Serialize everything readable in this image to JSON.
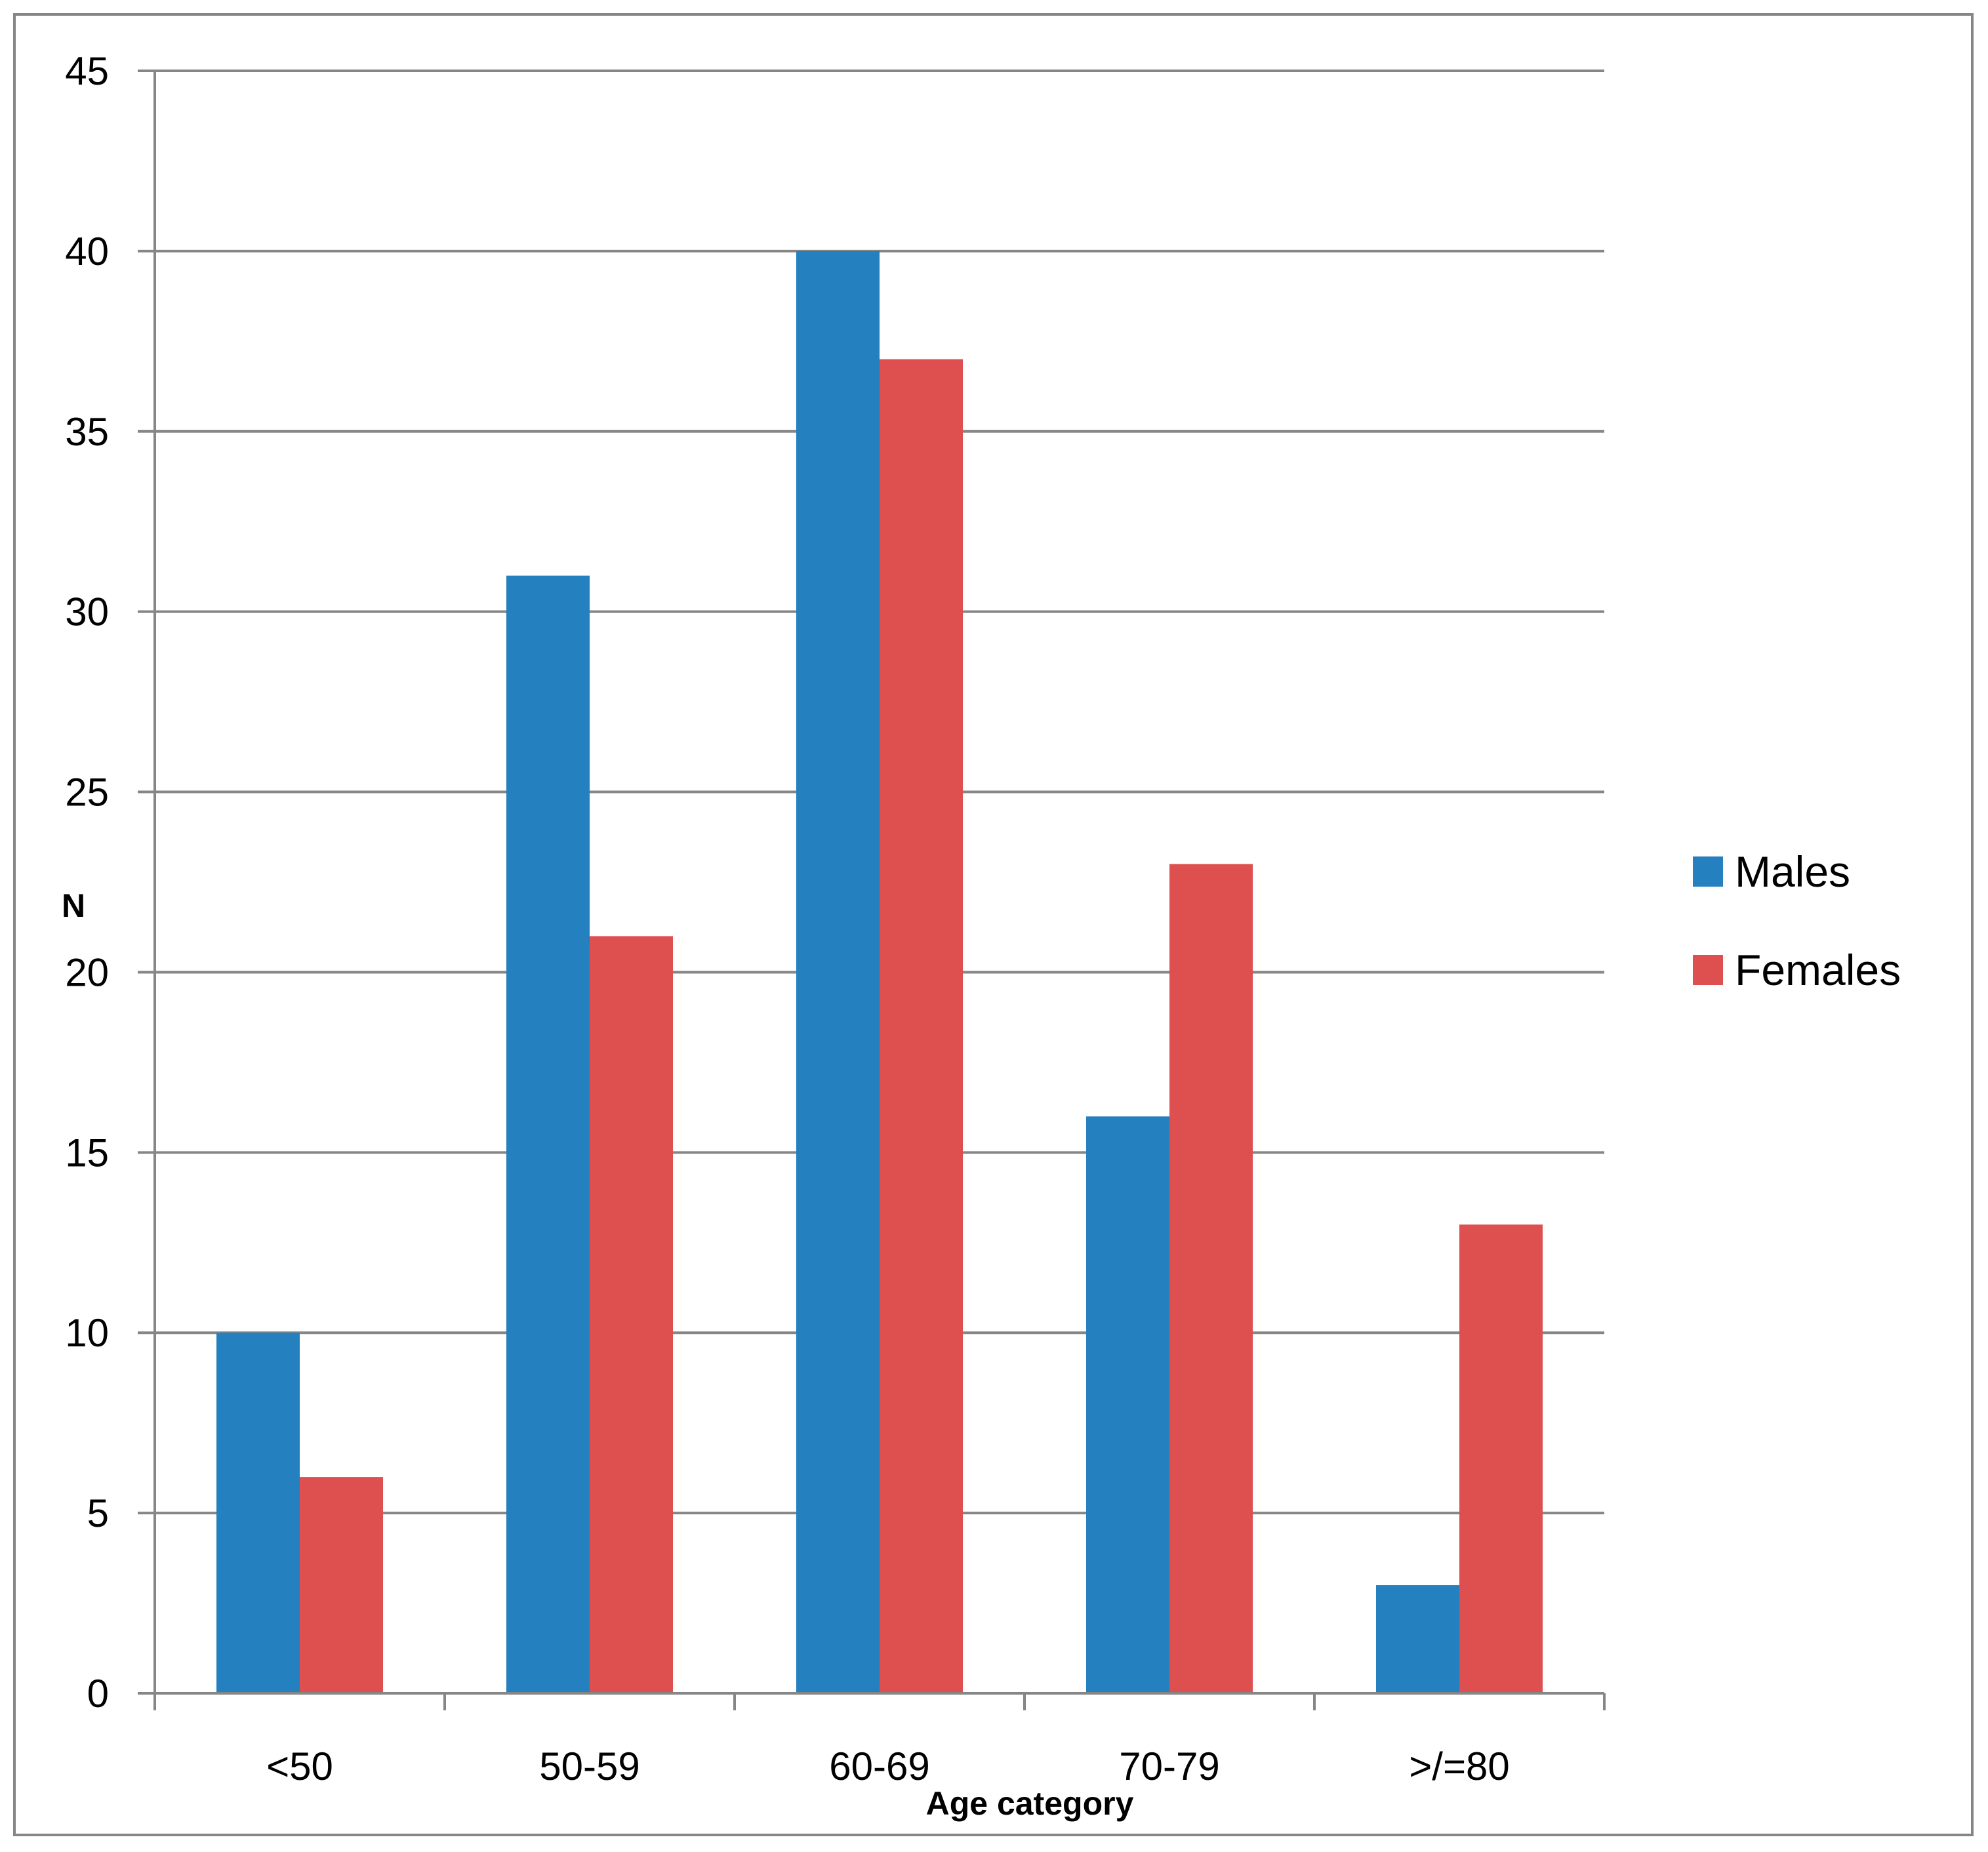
{
  "chart_data": {
    "type": "bar",
    "title": "",
    "xlabel": "Age category",
    "ylabel": "N",
    "categories": [
      "<50",
      "50-59",
      "60-69",
      "70-79",
      ">/=80"
    ],
    "series": [
      {
        "name": "Males",
        "color": "#2580BF",
        "values": [
          10,
          31,
          40,
          16,
          3
        ]
      },
      {
        "name": "Females",
        "color": "#DE4F4F",
        "values": [
          6,
          21,
          37,
          23,
          13
        ]
      }
    ],
    "ylim": [
      0,
      45
    ],
    "yticks": [
      0,
      5,
      10,
      15,
      20,
      25,
      30,
      35,
      40,
      45
    ],
    "grid": true,
    "legend_position": "right"
  }
}
